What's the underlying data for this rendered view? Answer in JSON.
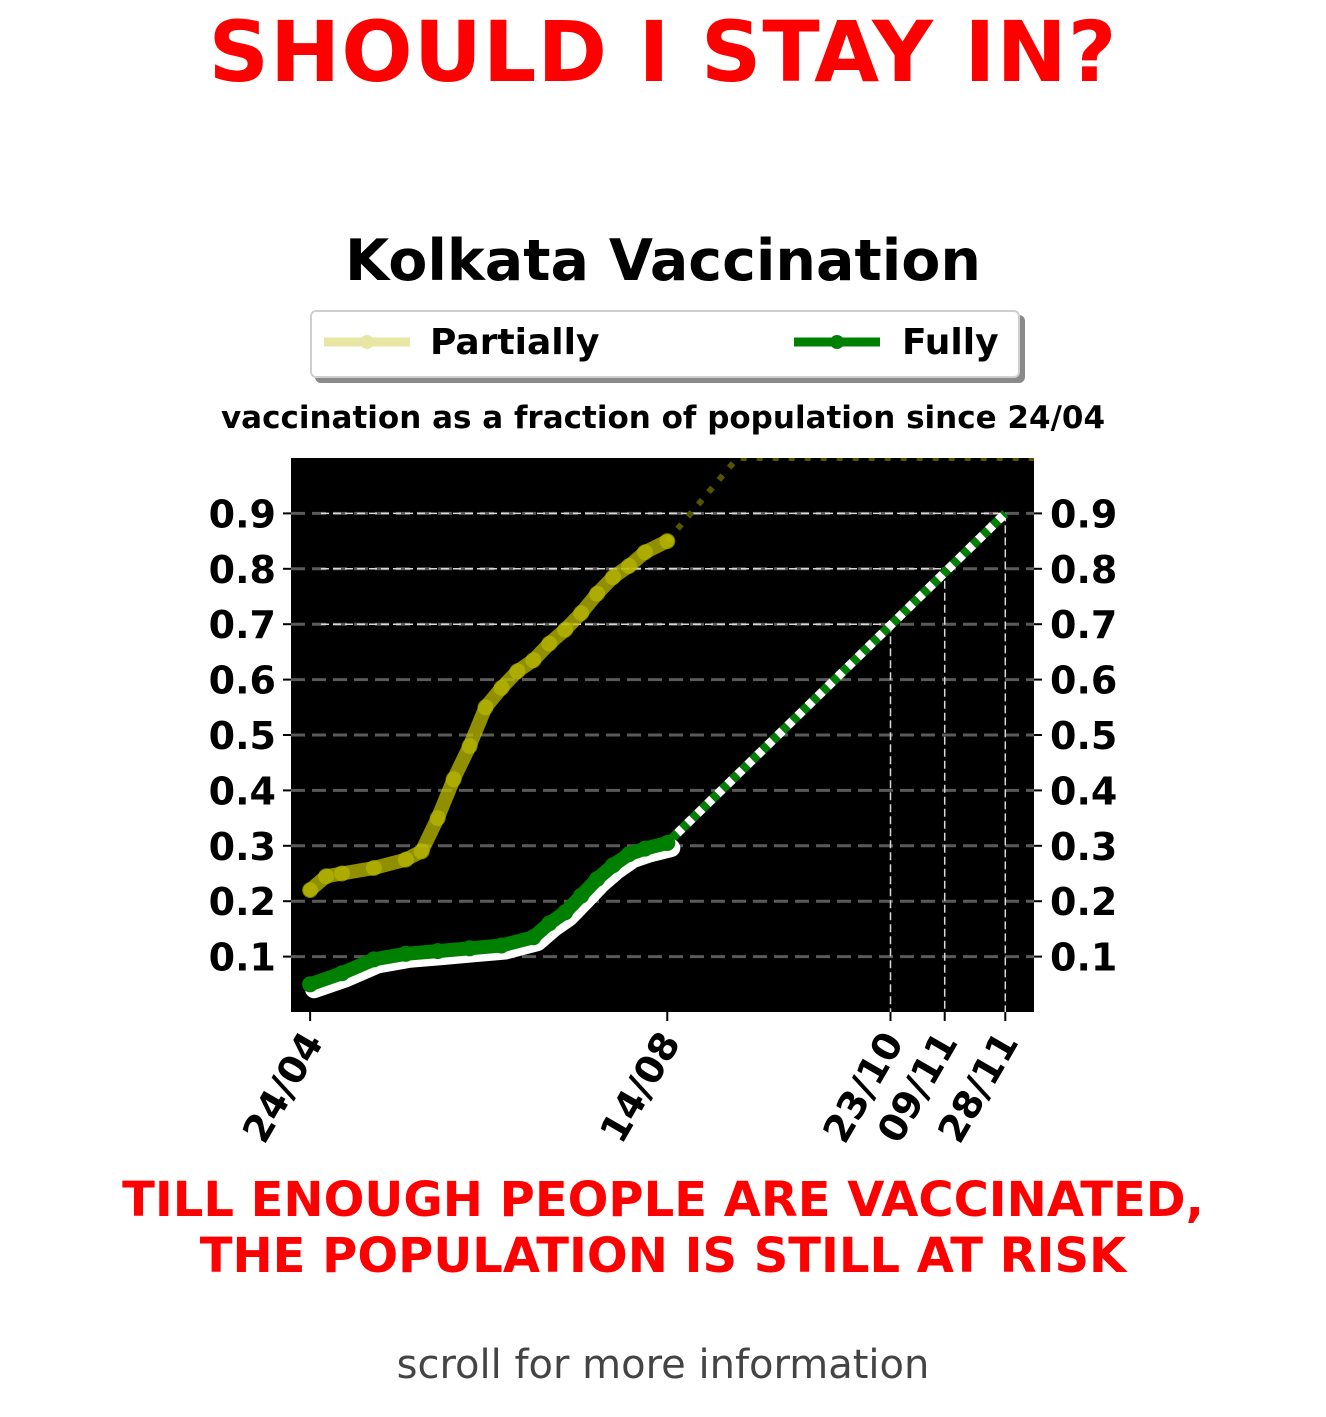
{
  "headline": "SHOULD I STAY IN?",
  "footer": {
    "warning_line1": "TILL ENOUGH PEOPLE ARE VACCINATED,",
    "warning_line2": "THE POPULATION IS STILL AT RISK",
    "scroll_hint": "scroll for more information"
  },
  "chart_data": {
    "type": "line",
    "title": "Kolkata Vaccination",
    "subtitle": "vaccination as a fraction of population since 24/04",
    "xlabel": "",
    "ylabel": "",
    "legend_placement": "top-center",
    "plot_background": "#000000",
    "grid": "horizontal dashed",
    "ylim": [
      0,
      1.0
    ],
    "yticks": [
      0.1,
      0.2,
      0.3,
      0.4,
      0.5,
      0.6,
      0.7,
      0.8,
      0.9
    ],
    "ytick_labels": [
      "0.1",
      "0.2",
      "0.3",
      "0.4",
      "0.5",
      "0.6",
      "0.7",
      "0.8",
      "0.9"
    ],
    "xlim": [
      "2021-04-18",
      "2021-12-07"
    ],
    "xticks": [
      "2021-04-24",
      "2021-08-14",
      "2021-10-23",
      "2021-11-09",
      "2021-11-28"
    ],
    "xtick_labels": [
      "24/04",
      "14/08",
      "23/10",
      "09/11",
      "28/11"
    ],
    "series": [
      {
        "name": "Partially",
        "color": "#bfbf00",
        "legend_color": "#e8e6a3",
        "x": [
          "2021-04-24",
          "2021-04-29",
          "2021-05-04",
          "2021-05-14",
          "2021-05-24",
          "2021-05-29",
          "2021-06-03",
          "2021-06-08",
          "2021-06-13",
          "2021-06-18",
          "2021-06-23",
          "2021-06-28",
          "2021-07-03",
          "2021-07-08",
          "2021-07-13",
          "2021-07-18",
          "2021-07-23",
          "2021-07-28",
          "2021-08-02",
          "2021-08-07",
          "2021-08-14"
        ],
        "values": [
          0.22,
          0.245,
          0.25,
          0.26,
          0.275,
          0.29,
          0.35,
          0.42,
          0.48,
          0.55,
          0.585,
          0.615,
          0.635,
          0.665,
          0.69,
          0.72,
          0.755,
          0.785,
          0.805,
          0.83,
          0.85
        ],
        "projection": {
          "x": [
            "2021-08-14",
            "2021-09-05",
            "2021-12-07"
          ],
          "values": [
            0.85,
            1.0,
            1.0
          ],
          "color": "#555500",
          "style": "dotted"
        }
      },
      {
        "name": "Fully",
        "color": "#008000",
        "legend_color": "#008000",
        "x": [
          "2021-04-24",
          "2021-05-04",
          "2021-05-14",
          "2021-05-24",
          "2021-06-03",
          "2021-06-13",
          "2021-06-23",
          "2021-07-03",
          "2021-07-08",
          "2021-07-13",
          "2021-07-18",
          "2021-07-23",
          "2021-07-28",
          "2021-08-02",
          "2021-08-07",
          "2021-08-14"
        ],
        "values": [
          0.05,
          0.07,
          0.095,
          0.105,
          0.11,
          0.115,
          0.12,
          0.135,
          0.16,
          0.18,
          0.21,
          0.24,
          0.265,
          0.285,
          0.295,
          0.305
        ],
        "projection": {
          "x": [
            "2021-08-14",
            "2021-11-28"
          ],
          "values": [
            0.305,
            0.9
          ],
          "color": "#008000",
          "style": "dotted"
        }
      }
    ],
    "milestones": [
      {
        "x": "2021-10-23",
        "value": 0.7
      },
      {
        "x": "2021-11-09",
        "value": 0.8
      },
      {
        "x": "2021-11-28",
        "value": 0.9
      }
    ]
  }
}
